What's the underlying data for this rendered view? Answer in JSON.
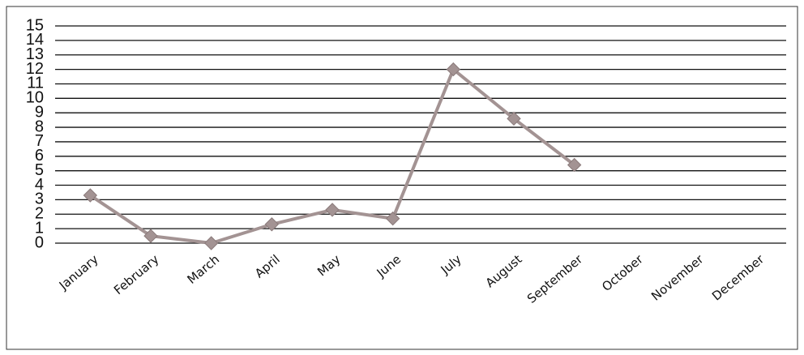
{
  "chart_data": {
    "type": "line",
    "categories": [
      "January",
      "February",
      "March",
      "April",
      "May",
      "June",
      "July",
      "August",
      "September",
      "October",
      "November",
      "December"
    ],
    "series": [
      {
        "color": "#a39393",
        "values": [
          3.3,
          0.5,
          0,
          1.3,
          2.3,
          1.7,
          12,
          8.6,
          5.4,
          null,
          null,
          null
        ]
      }
    ],
    "ylim": [
      0,
      15
    ],
    "yticks": [
      0,
      1,
      2,
      3,
      4,
      5,
      6,
      7,
      8,
      9,
      10,
      11,
      12,
      13,
      14,
      15
    ],
    "grid": true
  }
}
